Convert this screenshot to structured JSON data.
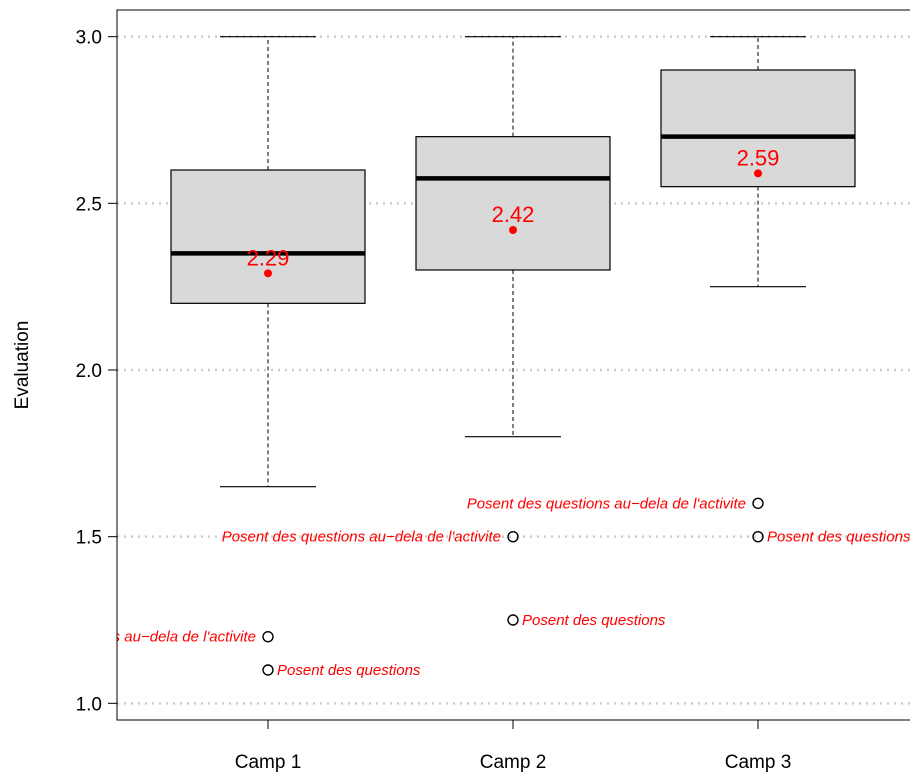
{
  "chart_data": {
    "type": "boxplot",
    "ylabel": "Evaluation",
    "ylim": [
      0.95,
      3.08
    ],
    "yticks": [
      "1.0",
      "1.5",
      "2.0",
      "2.5",
      "3.0"
    ],
    "ytick_values": [
      1.0,
      1.5,
      2.0,
      2.5,
      3.0
    ],
    "grid": "horizontal dotted",
    "colors": {
      "box_fill": "#d9d9d9",
      "mean": "#ff0000",
      "grid": "#cccccc"
    },
    "categories": [
      "Camp 1",
      "Camp 2",
      "Camp 3"
    ],
    "boxes": [
      {
        "category": "Camp 1",
        "whisker_low": 1.65,
        "q1": 2.2,
        "median": 2.35,
        "q3": 2.6,
        "whisker_high": 3.0,
        "mean": 2.29,
        "mean_label": "2.29",
        "outliers": [
          {
            "value": 1.2,
            "label": "Posent des questions au−dela de l'activite",
            "side": "left"
          },
          {
            "value": 1.1,
            "label": "Posent des questions",
            "side": "right"
          }
        ]
      },
      {
        "category": "Camp 2",
        "whisker_low": 1.8,
        "q1": 2.3,
        "median": 2.575,
        "q3": 2.7,
        "whisker_high": 3.0,
        "mean": 2.42,
        "mean_label": "2.42",
        "outliers": [
          {
            "value": 1.5,
            "label": "Posent des questions au−dela de l'activite",
            "side": "left"
          },
          {
            "value": 1.25,
            "label": "Posent des questions",
            "side": "right"
          }
        ]
      },
      {
        "category": "Camp 3",
        "whisker_low": 2.25,
        "q1": 2.55,
        "median": 2.7,
        "q3": 2.9,
        "whisker_high": 3.0,
        "mean": 2.59,
        "mean_label": "2.59",
        "outliers": [
          {
            "value": 1.6,
            "label": "Posent des questions au−dela de l'activite",
            "side": "left"
          },
          {
            "value": 1.5,
            "label": "Posent des questions",
            "side": "right"
          }
        ]
      }
    ]
  }
}
